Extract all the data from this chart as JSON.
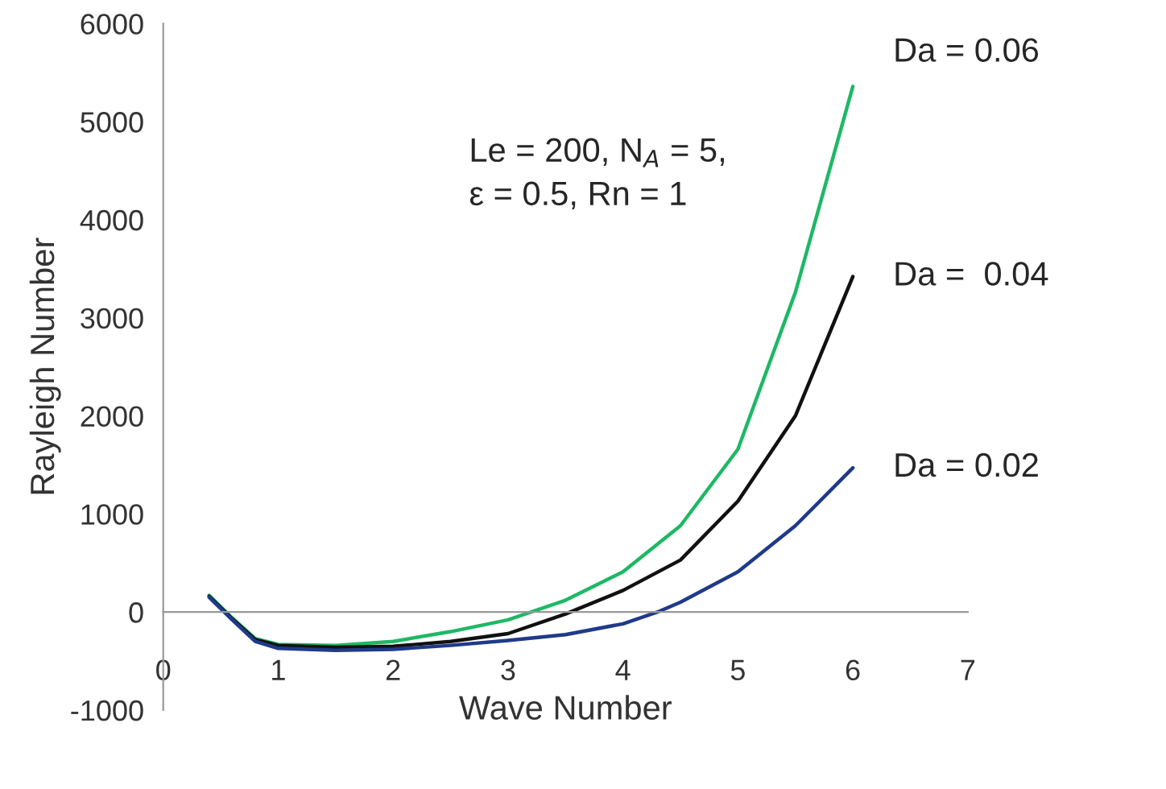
{
  "chart_data": {
    "type": "line",
    "xlabel": "Wave Number",
    "ylabel": "Rayleigh Number",
    "xlim": [
      0,
      7
    ],
    "xticks": [
      0,
      1,
      2,
      3,
      4,
      5,
      6,
      7
    ],
    "ylim": [
      -1000,
      6000
    ],
    "yticks": [
      -1000,
      0,
      1000,
      2000,
      3000,
      4000,
      5000,
      6000
    ],
    "grid": false,
    "marker": "none",
    "line_style": "solid",
    "annotations": [
      "Le = 200, N$_{A}$ = 5,\nε = 0.5, Rn = 1"
    ],
    "series": [
      {
        "name": "Da = 0.06",
        "color": "#1fb865",
        "x": [
          0.4,
          0.6,
          0.8,
          1,
          1.5,
          2,
          2.5,
          3,
          3.5,
          4,
          4.5,
          5,
          5.5,
          6
        ],
        "values": [
          170,
          -60,
          -270,
          -330,
          -340,
          -300,
          -200,
          -80,
          120,
          410,
          880,
          1660,
          3260,
          5360
        ]
      },
      {
        "name": "Da =  0.04",
        "color": "#111111",
        "x": [
          0.4,
          0.6,
          0.8,
          1,
          1.5,
          2,
          2.5,
          3,
          3.5,
          4,
          4.5,
          5,
          5.5,
          6
        ],
        "values": [
          160,
          -70,
          -280,
          -340,
          -360,
          -350,
          -300,
          -220,
          -20,
          220,
          530,
          1130,
          2000,
          3420
        ]
      },
      {
        "name": "Da = 0.02",
        "color": "#1f3a8a",
        "x": [
          0.4,
          0.6,
          0.8,
          1,
          1.5,
          2,
          2.5,
          3,
          3.5,
          4,
          4.3,
          4.5,
          5,
          5.5,
          6
        ],
        "values": [
          150,
          -80,
          -300,
          -370,
          -390,
          -380,
          -340,
          -290,
          -230,
          -120,
          0,
          100,
          410,
          880,
          1470
        ]
      }
    ]
  }
}
